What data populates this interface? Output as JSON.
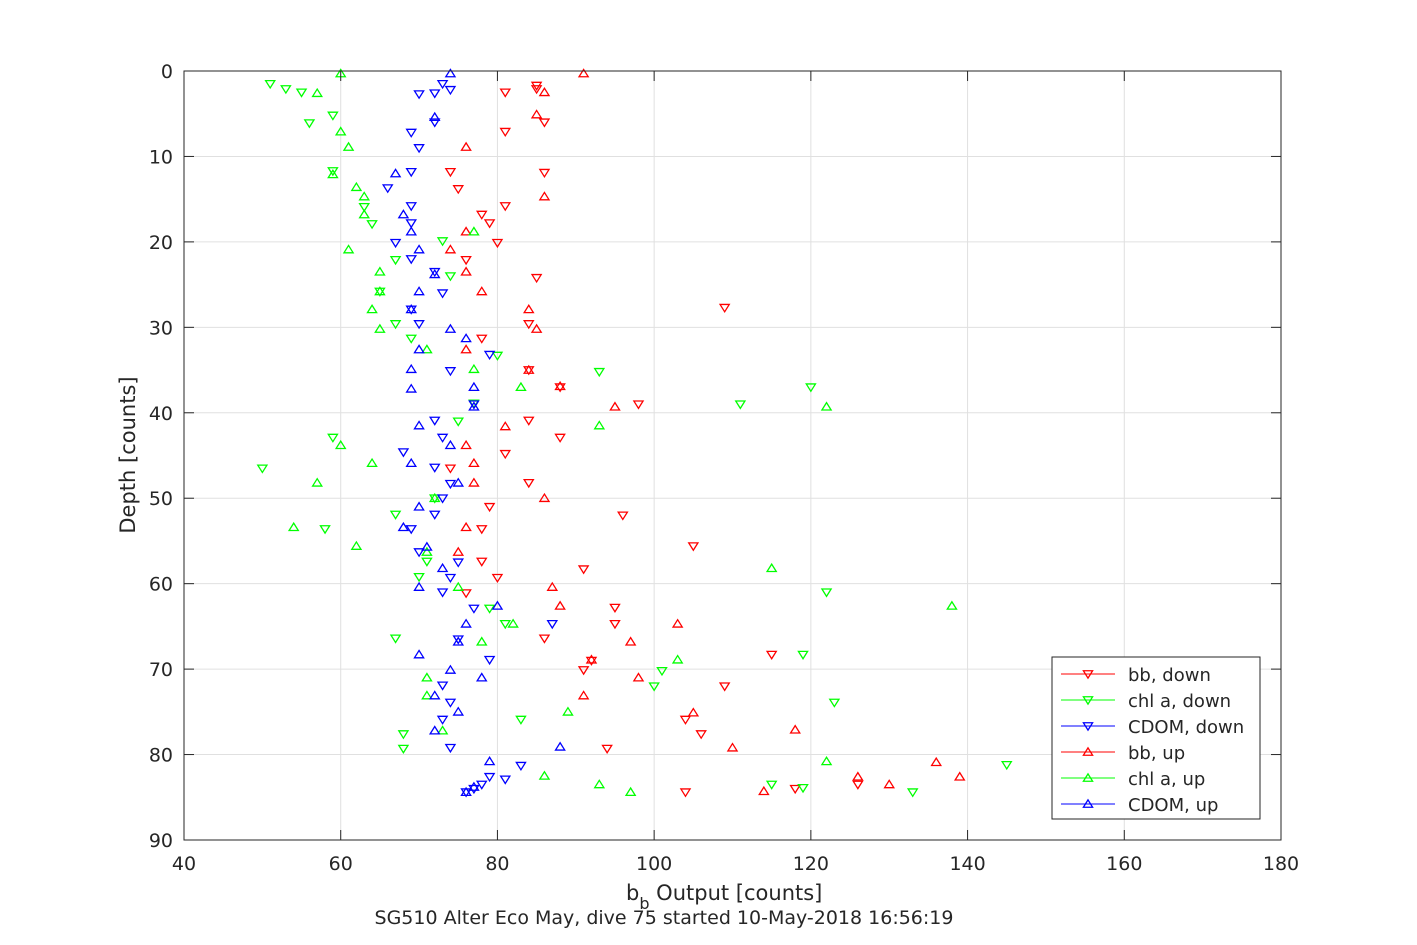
{
  "chart_data": {
    "type": "scatter",
    "title": "SG510 Alter Eco May, dive 75 started 10-May-2018 16:56:19",
    "xlabel": "b_b Output [counts]",
    "xlabel_main": "b",
    "xlabel_sub": "b",
    "xlabel_rest": " Output [counts]",
    "ylabel": "Depth [counts]",
    "xlim": [
      40,
      180
    ],
    "ylim": [
      0,
      90
    ],
    "y_reversed": true,
    "xticks": [
      40,
      60,
      80,
      100,
      120,
      140,
      160,
      180
    ],
    "yticks": [
      0,
      10,
      20,
      30,
      40,
      50,
      60,
      70,
      80,
      90
    ],
    "grid": true,
    "legend_position": "bottom-right",
    "series": [
      {
        "name": "bb, down",
        "color": "#ff0000",
        "marker": "triangle-down",
        "points": [
          [
            85,
            1.7
          ],
          [
            81,
            2.5
          ],
          [
            85,
            2.1
          ],
          [
            86,
            6.0
          ],
          [
            81,
            7.1
          ],
          [
            74,
            11.8
          ],
          [
            86,
            11.9
          ],
          [
            75,
            13.8
          ],
          [
            81,
            15.8
          ],
          [
            78,
            16.8
          ],
          [
            79,
            17.8
          ],
          [
            80,
            20.1
          ],
          [
            76,
            22.1
          ],
          [
            85,
            24.2
          ],
          [
            109,
            27.7
          ],
          [
            84,
            29.6
          ],
          [
            78,
            31.3
          ],
          [
            84,
            35.0
          ],
          [
            88,
            37.0
          ],
          [
            98,
            39.0
          ],
          [
            84,
            40.9
          ],
          [
            88,
            42.9
          ],
          [
            81,
            44.8
          ],
          [
            74,
            46.5
          ],
          [
            84,
            48.2
          ],
          [
            79,
            51.0
          ],
          [
            96,
            52.0
          ],
          [
            78,
            53.6
          ],
          [
            105,
            55.6
          ],
          [
            78,
            57.4
          ],
          [
            80,
            59.3
          ],
          [
            91,
            58.3
          ],
          [
            76,
            61.1
          ],
          [
            95,
            62.8
          ],
          [
            95,
            64.7
          ],
          [
            86,
            66.4
          ],
          [
            115,
            68.3
          ],
          [
            92,
            69.0
          ],
          [
            91,
            70.1
          ],
          [
            109,
            72.0
          ],
          [
            104,
            75.9
          ],
          [
            106,
            77.6
          ],
          [
            94,
            79.3
          ],
          [
            118,
            84.0
          ],
          [
            104,
            84.4
          ],
          [
            126,
            83.5
          ]
        ]
      },
      {
        "name": "chl a, down",
        "color": "#00ff00",
        "marker": "triangle-down",
        "points": [
          [
            51,
            1.5
          ],
          [
            53,
            2.1
          ],
          [
            55,
            2.5
          ],
          [
            59,
            5.2
          ],
          [
            56,
            6.1
          ],
          [
            59,
            11.7
          ],
          [
            63,
            15.9
          ],
          [
            64,
            17.9
          ],
          [
            73,
            19.9
          ],
          [
            67,
            22.1
          ],
          [
            74,
            24.0
          ],
          [
            65,
            25.8
          ],
          [
            67,
            29.6
          ],
          [
            69,
            31.3
          ],
          [
            80,
            33.3
          ],
          [
            93,
            35.2
          ],
          [
            120,
            37.0
          ],
          [
            77,
            38.9
          ],
          [
            111,
            39.0
          ],
          [
            75,
            41.0
          ],
          [
            59,
            42.9
          ],
          [
            50,
            46.5
          ],
          [
            72,
            50.0
          ],
          [
            67,
            51.9
          ],
          [
            58,
            53.6
          ],
          [
            70,
            59.2
          ],
          [
            71,
            57.4
          ],
          [
            122,
            61.0
          ],
          [
            79,
            62.9
          ],
          [
            81,
            64.7
          ],
          [
            67,
            66.4
          ],
          [
            119,
            68.3
          ],
          [
            101,
            70.2
          ],
          [
            100,
            72.0
          ],
          [
            123,
            73.9
          ],
          [
            83,
            75.9
          ],
          [
            68,
            77.6
          ],
          [
            68,
            79.3
          ],
          [
            115,
            83.5
          ],
          [
            119,
            83.9
          ],
          [
            133,
            84.4
          ],
          [
            145,
            81.2
          ]
        ]
      },
      {
        "name": "CDOM, down",
        "color": "#0000ff",
        "marker": "triangle-down",
        "points": [
          [
            73,
            1.5
          ],
          [
            74,
            2.2
          ],
          [
            72,
            2.6
          ],
          [
            70,
            2.7
          ],
          [
            72,
            6.0
          ],
          [
            69,
            7.2
          ],
          [
            70,
            9.0
          ],
          [
            69,
            11.8
          ],
          [
            66,
            13.7
          ],
          [
            69,
            15.8
          ],
          [
            69,
            17.8
          ],
          [
            67,
            20.1
          ],
          [
            69,
            22.0
          ],
          [
            72,
            23.5
          ],
          [
            73,
            26.0
          ],
          [
            69,
            27.9
          ],
          [
            70,
            29.6
          ],
          [
            79,
            33.2
          ],
          [
            74,
            35.1
          ],
          [
            77,
            39.0
          ],
          [
            72,
            40.9
          ],
          [
            73,
            42.9
          ],
          [
            68,
            44.6
          ],
          [
            72,
            46.4
          ],
          [
            74,
            48.3
          ],
          [
            73,
            50.0
          ],
          [
            72,
            51.9
          ],
          [
            69,
            53.6
          ],
          [
            70,
            56.3
          ],
          [
            75,
            57.5
          ],
          [
            74,
            59.3
          ],
          [
            73,
            61.0
          ],
          [
            77,
            62.9
          ],
          [
            87,
            64.7
          ],
          [
            75,
            66.5
          ],
          [
            79,
            68.9
          ],
          [
            73,
            71.9
          ],
          [
            74,
            73.9
          ],
          [
            73,
            75.9
          ],
          [
            74,
            79.2
          ],
          [
            83,
            81.3
          ],
          [
            79,
            82.6
          ],
          [
            81,
            82.9
          ],
          [
            78,
            83.5
          ],
          [
            77,
            84.0
          ],
          [
            76,
            84.4
          ]
        ]
      },
      {
        "name": "bb, up",
        "color": "#ff0000",
        "marker": "triangle-up",
        "points": [
          [
            91,
            0.3
          ],
          [
            86,
            2.5
          ],
          [
            85,
            5.1
          ],
          [
            76,
            8.9
          ],
          [
            86,
            14.7
          ],
          [
            76,
            18.8
          ],
          [
            74,
            20.9
          ],
          [
            76,
            23.5
          ],
          [
            78,
            25.8
          ],
          [
            84,
            27.9
          ],
          [
            85,
            30.2
          ],
          [
            76,
            32.6
          ],
          [
            84,
            35.0
          ],
          [
            88,
            36.9
          ],
          [
            95,
            39.3
          ],
          [
            81,
            41.6
          ],
          [
            76,
            43.8
          ],
          [
            77,
            45.9
          ],
          [
            77,
            48.2
          ],
          [
            86,
            50.0
          ],
          [
            76,
            53.4
          ],
          [
            75,
            56.3
          ],
          [
            87,
            60.4
          ],
          [
            88,
            62.6
          ],
          [
            103,
            64.7
          ],
          [
            97,
            66.8
          ],
          [
            98,
            71.0
          ],
          [
            92,
            68.9
          ],
          [
            91,
            73.1
          ],
          [
            105,
            75.1
          ],
          [
            118,
            77.1
          ],
          [
            110,
            79.2
          ],
          [
            136,
            80.9
          ],
          [
            139,
            82.6
          ],
          [
            126,
            82.6
          ],
          [
            130,
            83.5
          ],
          [
            114,
            84.3
          ]
        ]
      },
      {
        "name": "chl a, up",
        "color": "#00ff00",
        "marker": "triangle-up",
        "points": [
          [
            60,
            0.3
          ],
          [
            57,
            2.6
          ],
          [
            60,
            7.1
          ],
          [
            61,
            8.9
          ],
          [
            59,
            12.1
          ],
          [
            62,
            13.6
          ],
          [
            63,
            14.7
          ],
          [
            63,
            16.8
          ],
          [
            77,
            18.8
          ],
          [
            61,
            20.9
          ],
          [
            65,
            23.5
          ],
          [
            65,
            25.8
          ],
          [
            64,
            27.9
          ],
          [
            65,
            30.2
          ],
          [
            71,
            32.6
          ],
          [
            77,
            34.9
          ],
          [
            83,
            37.0
          ],
          [
            122,
            39.3
          ],
          [
            93,
            41.5
          ],
          [
            60,
            43.8
          ],
          [
            64,
            45.9
          ],
          [
            57,
            48.2
          ],
          [
            72,
            50.0
          ],
          [
            54,
            53.4
          ],
          [
            62,
            55.6
          ],
          [
            71,
            56.3
          ],
          [
            115,
            58.2
          ],
          [
            75,
            60.4
          ],
          [
            138,
            62.6
          ],
          [
            82,
            64.7
          ],
          [
            78,
            66.8
          ],
          [
            103,
            68.9
          ],
          [
            71,
            71.0
          ],
          [
            71,
            73.1
          ],
          [
            89,
            75.0
          ],
          [
            73,
            77.2
          ],
          [
            122,
            80.8
          ],
          [
            86,
            82.5
          ],
          [
            93,
            83.5
          ],
          [
            97,
            84.4
          ]
        ]
      },
      {
        "name": "CDOM, up",
        "color": "#0000ff",
        "marker": "triangle-up",
        "points": [
          [
            74,
            0.3
          ],
          [
            72,
            5.4
          ],
          [
            67,
            12.0
          ],
          [
            68,
            16.8
          ],
          [
            69,
            18.8
          ],
          [
            70,
            20.9
          ],
          [
            72,
            23.8
          ],
          [
            70,
            25.8
          ],
          [
            69,
            27.9
          ],
          [
            74,
            30.2
          ],
          [
            76,
            31.3
          ],
          [
            70,
            32.6
          ],
          [
            69,
            34.9
          ],
          [
            69,
            37.2
          ],
          [
            77,
            37.0
          ],
          [
            77,
            39.3
          ],
          [
            70,
            41.5
          ],
          [
            74,
            43.8
          ],
          [
            69,
            45.9
          ],
          [
            75,
            48.2
          ],
          [
            70,
            51.0
          ],
          [
            68,
            53.4
          ],
          [
            71,
            55.7
          ],
          [
            73,
            58.2
          ],
          [
            70,
            60.4
          ],
          [
            80,
            62.6
          ],
          [
            76,
            64.7
          ],
          [
            75,
            66.8
          ],
          [
            70,
            68.3
          ],
          [
            74,
            70.1
          ],
          [
            78,
            71.0
          ],
          [
            72,
            73.1
          ],
          [
            75,
            75.0
          ],
          [
            72,
            77.2
          ],
          [
            88,
            79.1
          ],
          [
            79,
            80.8
          ],
          [
            76,
            84.4
          ],
          [
            77,
            83.8
          ]
        ]
      }
    ]
  }
}
